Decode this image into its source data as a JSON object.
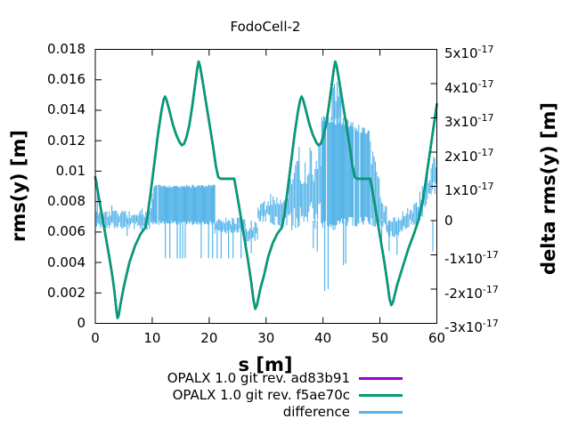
{
  "chart_data": {
    "type": "line",
    "title": "FodoCell-2",
    "xlabel": "s [m]",
    "ylabel": "rms(y) [m]",
    "y2label": "delta rms(y) [m]",
    "xlim": [
      0,
      60
    ],
    "ylim": [
      0,
      0.018
    ],
    "y2lim_e17": [
      -3,
      5
    ],
    "grid": false,
    "legend_position": "below-plot-right",
    "background_color": "#ffffff",
    "frame_color": "#000000",
    "x_ticks": {
      "values": [
        0,
        10,
        20,
        30,
        40,
        50,
        60
      ],
      "labels": [
        "0",
        "10",
        "20",
        "30",
        "40",
        "50",
        "60"
      ]
    },
    "y_ticks": {
      "values": [
        0,
        0.002,
        0.004,
        0.006,
        0.008,
        0.01,
        0.012,
        0.014,
        0.016,
        0.018
      ],
      "labels": [
        "0",
        "0.002",
        "0.004",
        "0.006",
        "0.008",
        "0.01",
        "0.012",
        "0.014",
        "0.016",
        "0.018"
      ]
    },
    "y2_ticks": [
      {
        "value_e17": 5,
        "text": "5x10",
        "sup": "-17"
      },
      {
        "value_e17": 4,
        "text": "4x10",
        "sup": "-17"
      },
      {
        "value_e17": 3,
        "text": "3x10",
        "sup": "-17"
      },
      {
        "value_e17": 2,
        "text": "2x10",
        "sup": "-17"
      },
      {
        "value_e17": 1,
        "text": "1x10",
        "sup": "-17"
      },
      {
        "value_e17": 0,
        "text": "0",
        "sup": ""
      },
      {
        "value_e17": -1,
        "text": "-1x10",
        "sup": "-17"
      },
      {
        "value_e17": -2,
        "text": "-2x10",
        "sup": "-17"
      },
      {
        "value_e17": -3,
        "text": "-3x10",
        "sup": "-17"
      }
    ],
    "series": [
      {
        "name": "OPALX 1.0 git rev. ad83b91",
        "color": "#9400d3",
        "axis": "left",
        "note": "coincides with f5ae70c curve, fully hidden beneath it in plot",
        "points_same_as": 1
      },
      {
        "name": "OPALX 1.0 git rev. f5ae70c",
        "color": "#009e73",
        "axis": "left",
        "points": [
          [
            0,
            0.0096
          ],
          [
            0.8,
            0.0079
          ],
          [
            1.6,
            0.0062
          ],
          [
            2.4,
            0.0045
          ],
          [
            3.0,
            0.0031
          ],
          [
            3.4,
            0.002
          ],
          [
            3.7,
            0.0009
          ],
          [
            3.9,
            0.00035
          ],
          [
            4.1,
            0.0005
          ],
          [
            4.4,
            0.0012
          ],
          [
            5,
            0.0024
          ],
          [
            6,
            0.004
          ],
          [
            7,
            0.0051
          ],
          [
            8,
            0.0059
          ],
          [
            8.8,
            0.0063
          ],
          [
            9.2,
            0.0071
          ],
          [
            9.8,
            0.0088
          ],
          [
            10.4,
            0.0106
          ],
          [
            11,
            0.0124
          ],
          [
            11.6,
            0.0139
          ],
          [
            12,
            0.0147
          ],
          [
            12.25,
            0.0149
          ],
          [
            12.5,
            0.0147
          ],
          [
            13,
            0.014
          ],
          [
            13.6,
            0.0131
          ],
          [
            14.2,
            0.0124
          ],
          [
            14.8,
            0.0119
          ],
          [
            15.2,
            0.0117
          ],
          [
            15.6,
            0.0118
          ],
          [
            16,
            0.0122
          ],
          [
            16.5,
            0.013
          ],
          [
            17,
            0.0142
          ],
          [
            17.5,
            0.0156
          ],
          [
            17.9,
            0.0167
          ],
          [
            18.15,
            0.0172
          ],
          [
            18.4,
            0.0169
          ],
          [
            18.9,
            0.0158
          ],
          [
            19.5,
            0.0144
          ],
          [
            20.1,
            0.013
          ],
          [
            20.7,
            0.0116
          ],
          [
            21.2,
            0.0103
          ],
          [
            21.6,
            0.0096
          ],
          [
            22,
            0.0095
          ],
          [
            24.4,
            0.0095
          ],
          [
            25.2,
            0.0078
          ],
          [
            26,
            0.006
          ],
          [
            26.8,
            0.0042
          ],
          [
            27.4,
            0.0027
          ],
          [
            27.8,
            0.0015
          ],
          [
            28.1,
            0.00095
          ],
          [
            28.4,
            0.0012
          ],
          [
            29,
            0.0023
          ],
          [
            29.6,
            0.0031
          ],
          [
            30.4,
            0.0044
          ],
          [
            31.2,
            0.0053
          ],
          [
            32,
            0.0059
          ],
          [
            32.8,
            0.0063
          ],
          [
            33.2,
            0.0071
          ],
          [
            33.8,
            0.0088
          ],
          [
            34.4,
            0.0106
          ],
          [
            35,
            0.0124
          ],
          [
            35.6,
            0.0139
          ],
          [
            36,
            0.0147
          ],
          [
            36.25,
            0.0149
          ],
          [
            36.5,
            0.0147
          ],
          [
            37,
            0.014
          ],
          [
            37.6,
            0.0131
          ],
          [
            38.2,
            0.0124
          ],
          [
            38.8,
            0.0119
          ],
          [
            39.2,
            0.0117
          ],
          [
            39.6,
            0.0118
          ],
          [
            40,
            0.0122
          ],
          [
            40.5,
            0.013
          ],
          [
            41,
            0.0142
          ],
          [
            41.5,
            0.0156
          ],
          [
            41.9,
            0.0167
          ],
          [
            42.15,
            0.0172
          ],
          [
            42.4,
            0.0169
          ],
          [
            42.9,
            0.0158
          ],
          [
            43.5,
            0.0144
          ],
          [
            44.1,
            0.013
          ],
          [
            44.7,
            0.0116
          ],
          [
            45.2,
            0.0103
          ],
          [
            45.6,
            0.0096
          ],
          [
            46,
            0.0095
          ],
          [
            48.3,
            0.0095
          ],
          [
            49.1,
            0.0078
          ],
          [
            49.9,
            0.006
          ],
          [
            50.7,
            0.0042
          ],
          [
            51.3,
            0.0027
          ],
          [
            51.7,
            0.0016
          ],
          [
            52,
            0.0012
          ],
          [
            52.3,
            0.0014
          ],
          [
            53,
            0.0025
          ],
          [
            54,
            0.0037
          ],
          [
            55,
            0.0049
          ],
          [
            56,
            0.0059
          ],
          [
            56.8,
            0.0068
          ],
          [
            57.5,
            0.008
          ],
          [
            58,
            0.0092
          ],
          [
            58.5,
            0.0105
          ],
          [
            59,
            0.0118
          ],
          [
            59.5,
            0.0131
          ],
          [
            60,
            0.0144
          ]
        ]
      },
      {
        "name": "difference",
        "color": "#56b4e9",
        "axis": "right",
        "value_unit_e17": true,
        "envelope_regions": [
          {
            "s0": 0.0,
            "s1": 0.7,
            "lo": [
              -0.2,
              -0.2
            ],
            "hi": [
              0.3,
              0.25
            ],
            "mode": "noise"
          },
          {
            "s0": 0.7,
            "s1": 8.0,
            "lo": [
              -0.25,
              -0.25
            ],
            "hi": [
              0.3,
              0.3
            ],
            "mode": "noise"
          },
          {
            "s0": 8.0,
            "s1": 10.3,
            "lo": [
              -0.35,
              -0.3
            ],
            "hi": [
              0.35,
              0.75
            ],
            "mode": "noise"
          },
          {
            "s0": 10.3,
            "s1": 21.0,
            "lo": [
              -0.15,
              -0.15
            ],
            "hi": [
              1.08,
              1.08
            ],
            "mode": "solid"
          },
          {
            "s0": 21.0,
            "s1": 26.3,
            "lo": [
              -0.45,
              -0.35
            ],
            "hi": [
              0.12,
              0.1
            ],
            "mode": "noise"
          },
          {
            "s0": 26.3,
            "s1": 28.6,
            "lo": [
              -0.85,
              -0.55
            ],
            "hi": [
              -0.05,
              0.0
            ],
            "mode": "noise"
          },
          {
            "s0": 28.6,
            "s1": 30.8,
            "lo": [
              -0.1,
              0.0
            ],
            "hi": [
              0.45,
              0.7
            ],
            "mode": "noise"
          },
          {
            "s0": 30.8,
            "s1": 33.2,
            "lo": [
              -0.15,
              -0.2
            ],
            "hi": [
              0.8,
              0.55
            ],
            "mode": "noise"
          },
          {
            "s0": 33.2,
            "s1": 36.2,
            "lo": [
              -0.35,
              -0.3
            ],
            "hi": [
              1.2,
              2.0
            ],
            "mode": "noise"
          },
          {
            "s0": 36.2,
            "s1": 39.8,
            "lo": [
              -0.35,
              -0.4
            ],
            "hi": [
              2.1,
              2.4
            ],
            "mode": "noise"
          },
          {
            "s0": 39.8,
            "s1": 45.3,
            "lo": [
              -0.45,
              -0.25
            ],
            "hi": [
              3.15,
              3.05
            ],
            "mode": "solid"
          },
          {
            "s0": 41.6,
            "s1": 43.3,
            "lo": [
              2.9,
              2.9
            ],
            "hi": [
              3.95,
              3.85
            ],
            "mode": "noise"
          },
          {
            "s0": 45.3,
            "s1": 48.1,
            "lo": [
              -0.3,
              -0.2
            ],
            "hi": [
              2.95,
              2.7
            ],
            "mode": "solid"
          },
          {
            "s0": 48.1,
            "s1": 51.3,
            "lo": [
              -0.25,
              -0.35
            ],
            "hi": [
              2.6,
              0.35
            ],
            "mode": "noise"
          },
          {
            "s0": 51.3,
            "s1": 54.0,
            "lo": [
              -0.6,
              -0.4
            ],
            "hi": [
              0.15,
              0.1
            ],
            "mode": "noise"
          },
          {
            "s0": 54.0,
            "s1": 56.8,
            "lo": [
              -0.3,
              -0.1
            ],
            "hi": [
              0.3,
              0.6
            ],
            "mode": "noise"
          },
          {
            "s0": 56.8,
            "s1": 60.0,
            "lo": [
              -0.1,
              0.85
            ],
            "hi": [
              0.8,
              2.2
            ],
            "mode": "noise"
          }
        ],
        "spikes": [
          {
            "s": 0.35,
            "v": 1.15
          },
          {
            "s": 2.9,
            "v": 0.45
          },
          {
            "s": 5.6,
            "v": -0.45
          },
          {
            "s": 10.0,
            "v": 0.8
          },
          {
            "s": 12.3,
            "v": -1.1
          },
          {
            "s": 13.1,
            "v": -1.1
          },
          {
            "s": 14.4,
            "v": -1.1
          },
          {
            "s": 14.9,
            "v": -1.1
          },
          {
            "s": 15.35,
            "v": -1.1
          },
          {
            "s": 15.8,
            "v": -1.1
          },
          {
            "s": 18.6,
            "v": -1.1
          },
          {
            "s": 19.9,
            "v": -1.1
          },
          {
            "s": 20.6,
            "v": -1.1
          },
          {
            "s": 21.4,
            "v": -1.1
          },
          {
            "s": 22.1,
            "v": -1.1
          },
          {
            "s": 23.4,
            "v": -1.1
          },
          {
            "s": 24.2,
            "v": -1.1
          },
          {
            "s": 25.6,
            "v": -1.1
          },
          {
            "s": 27.4,
            "v": -0.95
          },
          {
            "s": 35.8,
            "v": 2.15
          },
          {
            "s": 38.3,
            "v": -0.8
          },
          {
            "s": 39.0,
            "v": -0.9
          },
          {
            "s": 40.3,
            "v": -2.05
          },
          {
            "s": 40.9,
            "v": -2.0
          },
          {
            "s": 42.0,
            "v": 4.0
          },
          {
            "s": 42.5,
            "v": 4.05
          },
          {
            "s": 42.9,
            "v": 3.9
          },
          {
            "s": 43.6,
            "v": -1.3
          },
          {
            "s": 44.0,
            "v": -1.25
          },
          {
            "s": 50.3,
            "v": -0.6
          },
          {
            "s": 51.6,
            "v": -0.9
          },
          {
            "s": 53.0,
            "v": -1.0
          },
          {
            "s": 59.3,
            "v": -0.9
          }
        ]
      }
    ]
  }
}
